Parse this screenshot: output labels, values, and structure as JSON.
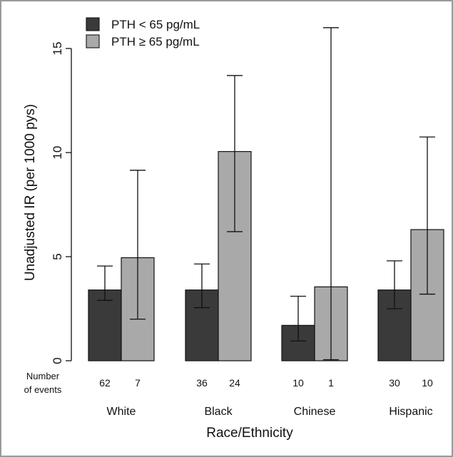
{
  "chart_data": {
    "type": "bar",
    "categories": [
      "White",
      "Black",
      "Chinese",
      "Hispanic"
    ],
    "series": [
      {
        "name": "PTH < 65 pg/mL",
        "color": "#3a3a3a",
        "values": [
          3.4,
          3.4,
          1.7,
          3.4
        ],
        "ci_low": [
          2.9,
          2.55,
          0.95,
          2.5
        ],
        "ci_high": [
          4.55,
          4.65,
          3.1,
          4.8
        ],
        "events": [
          "62",
          "36",
          "10",
          "30"
        ]
      },
      {
        "name": "PTH ≥ 65 pg/mL",
        "color": "#a9a9a9",
        "values": [
          4.95,
          10.05,
          3.55,
          6.3
        ],
        "ci_low": [
          2.0,
          6.2,
          0.05,
          3.2
        ],
        "ci_high": [
          9.15,
          13.7,
          16.0,
          10.75
        ],
        "events": [
          "7",
          "24",
          "1",
          "10"
        ]
      }
    ],
    "ylabel": "Unadjusted IR (per 1000 pys)",
    "xlabel": "Race/Ethnicity",
    "ylim": [
      0,
      16
    ],
    "yticks": [
      "0",
      "5",
      "10",
      "15"
    ],
    "events_label": [
      "Number",
      "of events"
    ],
    "legend_position": "top-left",
    "grid": false
  }
}
